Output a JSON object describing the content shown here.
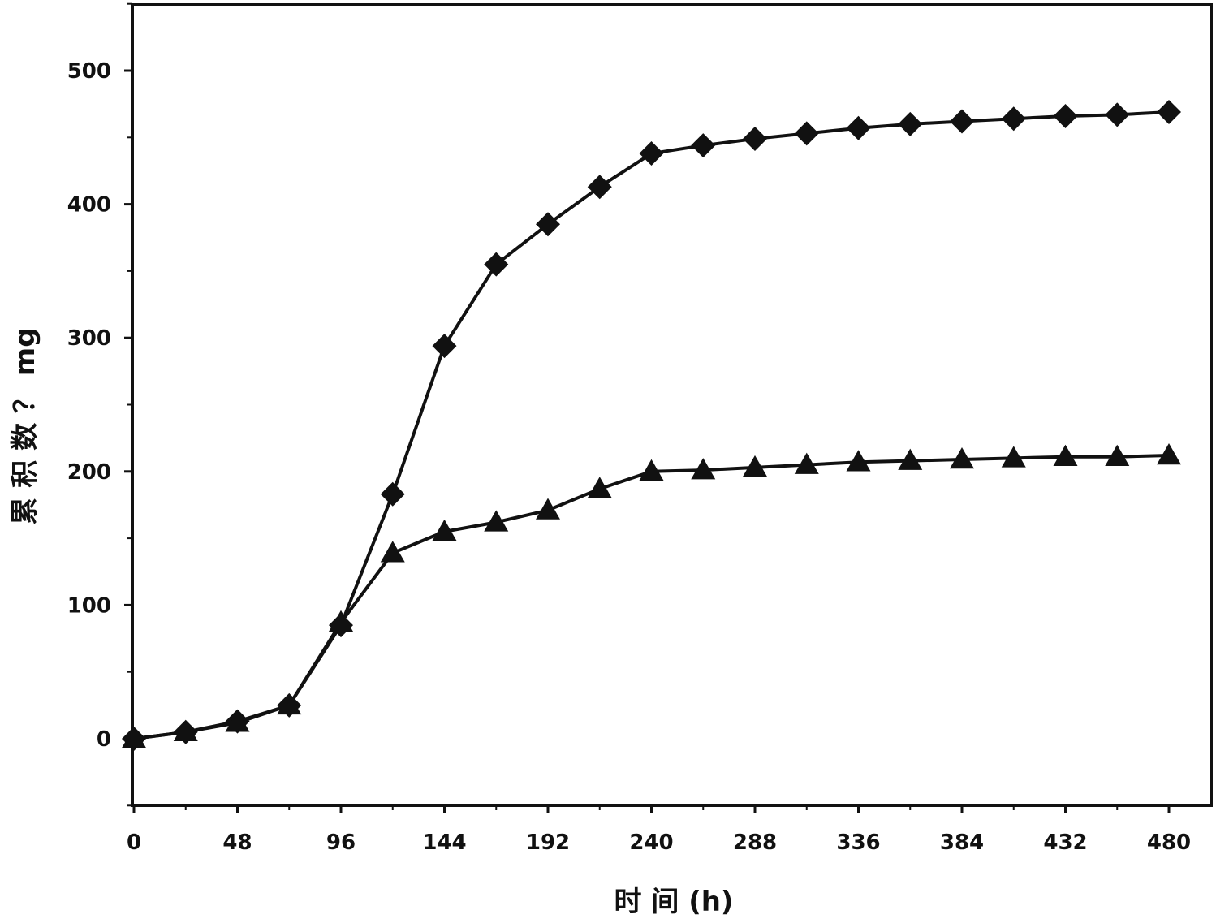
{
  "chart_data": {
    "type": "line",
    "title": "",
    "xlabel": "时 间 (h)",
    "ylabel": "累 积 数 ？ mg",
    "xlim": [
      0,
      480
    ],
    "ylim": [
      -50,
      550
    ],
    "x_ticks": [
      "0",
      "48",
      "96",
      "144",
      "192",
      "240",
      "288",
      "336",
      "384",
      "432",
      "480"
    ],
    "y_ticks": [
      "0",
      "100",
      "200",
      "300",
      "400",
      "500"
    ],
    "grid": false,
    "legend": "none",
    "x": [
      0,
      24,
      48,
      72,
      96,
      120,
      144,
      168,
      192,
      216,
      240,
      264,
      288,
      312,
      336,
      360,
      384,
      408,
      432,
      456,
      480
    ],
    "series": [
      {
        "marker": "diamond",
        "color": "#111111",
        "values": [
          0,
          5,
          13,
          25,
          85,
          183,
          294,
          355,
          385,
          413,
          438,
          444,
          449,
          453,
          457,
          460,
          462,
          464,
          466,
          467,
          469
        ]
      },
      {
        "marker": "triangle",
        "color": "#111111",
        "values": [
          0,
          5,
          12,
          25,
          87,
          139,
          155,
          162,
          171,
          187,
          200,
          201,
          203,
          205,
          207,
          208,
          209,
          210,
          211,
          211,
          212
        ]
      }
    ]
  }
}
